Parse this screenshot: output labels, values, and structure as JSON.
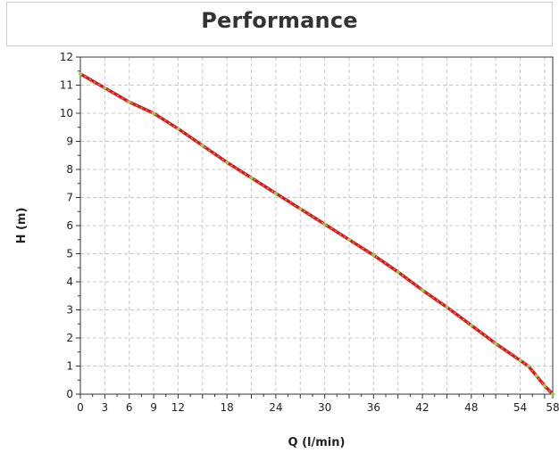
{
  "chart_data": {
    "type": "line",
    "title": "Performance",
    "xlabel": "Q (l/min)",
    "ylabel": "H (m)",
    "xlim": [
      0,
      58
    ],
    "ylim": [
      0,
      12
    ],
    "x_ticks": [
      0,
      3,
      6,
      9,
      12,
      18,
      24,
      30,
      36,
      42,
      48,
      54,
      58
    ],
    "y_ticks": [
      0,
      1,
      2,
      3,
      4,
      5,
      6,
      7,
      8,
      9,
      10,
      11,
      12
    ],
    "grid": true,
    "series": [
      {
        "color": "#e0141e",
        "marker_color": "#8fd14f",
        "x": [
          0,
          3,
          6,
          9,
          12,
          15,
          18,
          21,
          24,
          27,
          30,
          33,
          36,
          39,
          42,
          45,
          48,
          51,
          54,
          55,
          56,
          57,
          58
        ],
        "y": [
          11.4,
          10.9,
          10.4,
          10.0,
          9.45,
          8.85,
          8.25,
          7.7,
          7.15,
          6.6,
          6.05,
          5.5,
          4.95,
          4.35,
          3.7,
          3.1,
          2.45,
          1.8,
          1.2,
          1.0,
          0.65,
          0.3,
          0.0
        ]
      }
    ]
  }
}
